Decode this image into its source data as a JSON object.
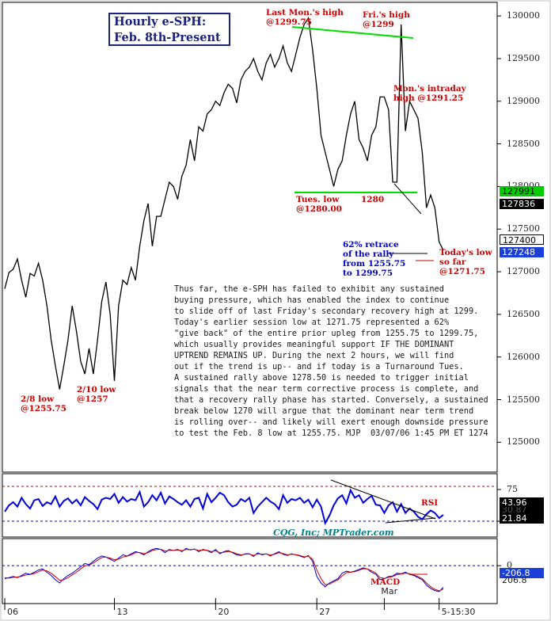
{
  "title": {
    "line1": "Hourly e-SPH:",
    "line2": "Feb. 8th-Present"
  },
  "colors": {
    "price": "#000000",
    "resistance": "#00cc00",
    "rsi": "#0000dd",
    "macd": "#0000cc",
    "signal": "#cc0000",
    "annotation_red": "#cc0000",
    "annotation_blue": "#0000cc",
    "credit": "#008080"
  },
  "annotations": {
    "last_mon_high": [
      "Last Mon.'s high",
      "@1299.75"
    ],
    "fri_high": [
      "Fri.'s high",
      "@1299"
    ],
    "mon_intraday": [
      "Mon.'s intraday",
      "high @1291.25"
    ],
    "tues_low": [
      "Tues. low",
      "@1280.00"
    ],
    "level_1280": "1280",
    "retrace": [
      "62% retrace",
      "of the rally",
      "from 1255.75",
      "to 1299.75"
    ],
    "todays_low": [
      "Today's low",
      "so far",
      "@1271.75"
    ],
    "feb8_low": [
      "2/8 low",
      "@1255.75"
    ],
    "feb10_low": [
      "2/10 low",
      "@1257"
    ]
  },
  "commentary": [
    "Thus far, the e-SPH has failed to exhibit any sustained",
    "buying pressure, which has enabled the index to continue",
    "to slide off of last Friday's secondary recovery high at 1299.",
    "Today's earlier session low at 1271.75 represented a 62%",
    "\"give back\" of the entire prior upleg from 1255.75 to 1299.75,",
    "which usually provides meaningful support IF THE DOMINANT",
    "UPTREND REMAINS UP. During the next 2 hours, we will find",
    "out if the trend is up-- and if today is a Turnaround Tues.",
    "A sustained rally above 1278.50 is needed to trigger initial",
    "signals that the near term corrective process is complete, and",
    "that a recovery rally phase has started. Conversely, a sustained",
    "break below 1270 will argue that the dominant near term trend",
    "is rolling over-- and likely will exert enough downside pressure",
    "to test the Feb. 8 low at 1255.75. MJP  03/07/06 1:45 PM ET 1274"
  ],
  "credit": "CQG, Inc; MPTrader.com",
  "badges": {
    "price_green": "127991",
    "price_black": "127836",
    "price_white": "127400",
    "price_blue": "127248",
    "rsi_black": "43.96",
    "rsi_hidden": "30.87",
    "rsi_navy": "21.84",
    "macd_blue": "-206.8",
    "macd_hidden": "206.8"
  },
  "chart_data": [
    {
      "type": "line",
      "name": "price",
      "ylim": [
        124650,
        130150
      ],
      "yticks": [
        "130000",
        "129500",
        "129000",
        "128500",
        "128000",
        "127500",
        "127000",
        "126500",
        "126000",
        "125500",
        "125000"
      ],
      "ytick_values": [
        130000,
        129500,
        129000,
        128500,
        128000,
        127500,
        127000,
        126500,
        126000,
        125500,
        125000
      ],
      "x_labels": [
        "06",
        "13",
        "20",
        "27",
        "Mar",
        "5-15:30"
      ],
      "x_label_bars": [
        0,
        26,
        50,
        74,
        90,
        103
      ],
      "values": [
        126800,
        126990,
        127030,
        127150,
        126900,
        126700,
        126980,
        126950,
        127100,
        126900,
        126600,
        126200,
        125900,
        125620,
        125900,
        126200,
        126600,
        126300,
        125950,
        125800,
        126100,
        125800,
        126200,
        126650,
        126880,
        126500,
        125720,
        126600,
        126900,
        126850,
        127050,
        126900,
        127300,
        127600,
        127800,
        127300,
        127650,
        127650,
        127850,
        128050,
        128000,
        127850,
        128120,
        128250,
        128550,
        128300,
        128700,
        128650,
        128850,
        128900,
        129000,
        128950,
        129100,
        129200,
        129150,
        128980,
        129250,
        129350,
        129400,
        129500,
        129350,
        129250,
        129450,
        129550,
        129400,
        129500,
        129650,
        129450,
        129350,
        129550,
        129750,
        129900,
        129975,
        129600,
        129150,
        128600,
        128400,
        128200,
        128000,
        128200,
        128300,
        128600,
        128850,
        129000,
        128550,
        128450,
        128300,
        128600,
        128700,
        129050,
        129050,
        128900,
        128050,
        128050,
        129900,
        128650,
        129000,
        128900,
        128800,
        128400,
        127750,
        127900,
        127750,
        127350,
        127250
      ]
    },
    {
      "type": "line",
      "name": "RSI",
      "ylim": [
        0,
        100
      ],
      "yticks": [
        "75",
        "25"
      ],
      "ytick_values": [
        75,
        25
      ],
      "ref_lines": [
        80,
        25
      ],
      "values": [
        40,
        50,
        55,
        48,
        62,
        52,
        45,
        58,
        60,
        49,
        55,
        52,
        64,
        48,
        57,
        61,
        53,
        59,
        50,
        63,
        57,
        52,
        44,
        59,
        62,
        60,
        68,
        54,
        63,
        56,
        60,
        58,
        71,
        48,
        55,
        66,
        58,
        70,
        53,
        64,
        60,
        55,
        51,
        58,
        48,
        60,
        62,
        45,
        68,
        55,
        62,
        70,
        66,
        55,
        48,
        51,
        60,
        56,
        62,
        38,
        48,
        55,
        62,
        56,
        52,
        44,
        66,
        54,
        60,
        58,
        62,
        54,
        59,
        47,
        59,
        48,
        22,
        34,
        50,
        61,
        66,
        53,
        74,
        62,
        66,
        54,
        60,
        65,
        51,
        50,
        38,
        50,
        55,
        40,
        52,
        38,
        45,
        40,
        32,
        28,
        36,
        42,
        38,
        30,
        35
      ]
    },
    {
      "type": "line",
      "name": "MACD",
      "ylim": [
        -350,
        250
      ],
      "yticks": [
        "0"
      ],
      "ytick_values": [
        0
      ],
      "series": [
        {
          "values": [
            -120,
            -110,
            -100,
            -110,
            -90,
            -70,
            -80,
            -60,
            -40,
            -30,
            -60,
            -90,
            -130,
            -160,
            -120,
            -90,
            -70,
            -40,
            -10,
            20,
            10,
            40,
            70,
            90,
            80,
            60,
            40,
            70,
            100,
            90,
            110,
            130,
            120,
            100,
            130,
            150,
            160,
            150,
            120,
            150,
            140,
            150,
            130,
            160,
            145,
            155,
            130,
            150,
            140,
            120,
            150,
            110,
            130,
            140,
            120,
            100,
            95,
            110,
            110,
            85,
            120,
            100,
            110,
            90,
            110,
            130,
            105,
            95,
            110,
            100,
            90,
            75,
            95,
            40,
            -100,
            -160,
            -195,
            -160,
            -140,
            -120,
            -70,
            -50,
            -60,
            -50,
            -35,
            -20,
            -30,
            -60,
            -80,
            -130,
            -120,
            -100,
            -95,
            -70,
            -75,
            -60,
            -80,
            -90,
            -110,
            -130,
            -180,
            -210,
            -230,
            -240,
            -200
          ]
        },
        {
          "values": [
            -110,
            -115,
            -108,
            -105,
            -98,
            -85,
            -82,
            -72,
            -55,
            -40,
            -48,
            -70,
            -100,
            -135,
            -130,
            -110,
            -85,
            -60,
            -30,
            0,
            5,
            25,
            50,
            75,
            80,
            70,
            55,
            60,
            80,
            88,
            100,
            120,
            122,
            110,
            120,
            140,
            150,
            152,
            135,
            142,
            140,
            145,
            138,
            150,
            148,
            152,
            140,
            145,
            142,
            130,
            138,
            120,
            125,
            132,
            125,
            110,
            100,
            105,
            108,
            95,
            110,
            105,
            108,
            98,
            105,
            120,
            112,
            100,
            105,
            102,
            95,
            82,
            88,
            60,
            -40,
            -120,
            -175,
            -170,
            -150,
            -130,
            -95,
            -65,
            -60,
            -55,
            -42,
            -28,
            -30,
            -48,
            -68,
            -110,
            -118,
            -108,
            -100,
            -82,
            -78,
            -68,
            -75,
            -85,
            -100,
            -120,
            -160,
            -195,
            -218,
            -232,
            -215
          ]
        }
      ]
    }
  ]
}
